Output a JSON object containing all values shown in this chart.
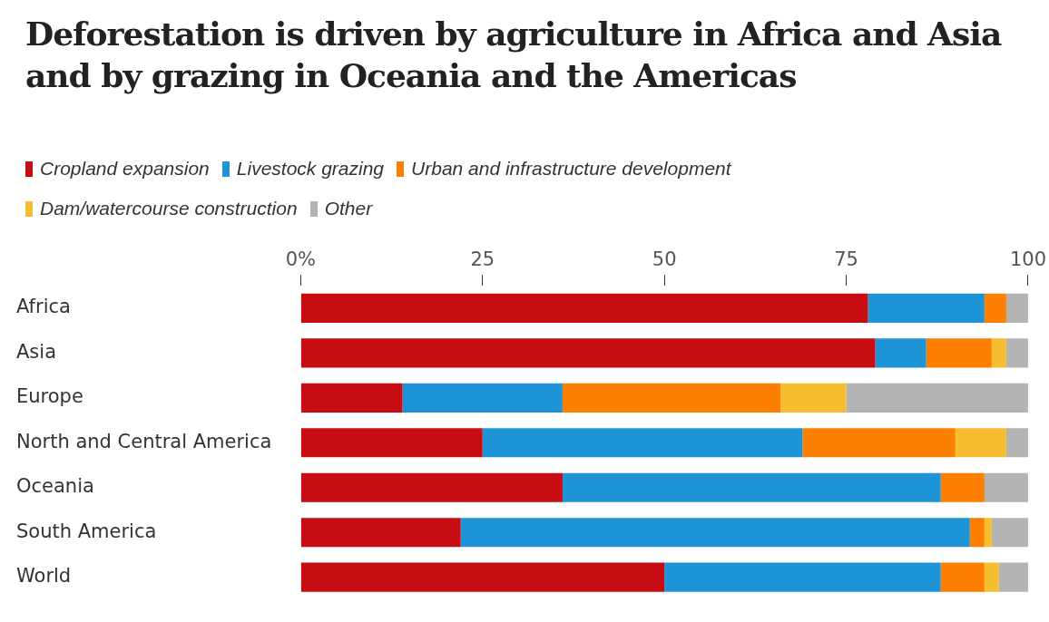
{
  "chart_data": {
    "type": "bar",
    "title": "Deforestation is driven by agriculture in Africa and Asia and by grazing in Oceania and the Americas",
    "orientation": "horizontal",
    "stacked": true,
    "legend": "top left",
    "grid": false,
    "categories": [
      "Africa",
      "Asia",
      "Europe",
      "North and Central America",
      "Oceania",
      "South America",
      "World"
    ],
    "xlim": [
      0,
      100
    ],
    "xticks": [
      {
        "value": 0,
        "label": "0%"
      },
      25,
      50,
      75,
      100
    ],
    "series": [
      {
        "name": "Cropland expansion",
        "color": "#c70d12",
        "values": [
          78,
          79,
          14,
          25,
          36,
          22,
          50
        ]
      },
      {
        "name": "Livestock grazing",
        "color": "#1e94d6",
        "values": [
          16,
          7,
          22,
          44,
          52,
          70,
          38
        ]
      },
      {
        "name": "Urban and infrastructure development",
        "color": "#fd7f00",
        "values": [
          3,
          9,
          30,
          21,
          6,
          2,
          6
        ]
      },
      {
        "name": "Dam/watercourse construction",
        "color": "#f5bd2f",
        "values": [
          0,
          2,
          9,
          7,
          0,
          1,
          2
        ]
      },
      {
        "name": "Other",
        "color": "#b3b3b3",
        "values": [
          3,
          3,
          25,
          3,
          6,
          5,
          4
        ]
      }
    ]
  }
}
